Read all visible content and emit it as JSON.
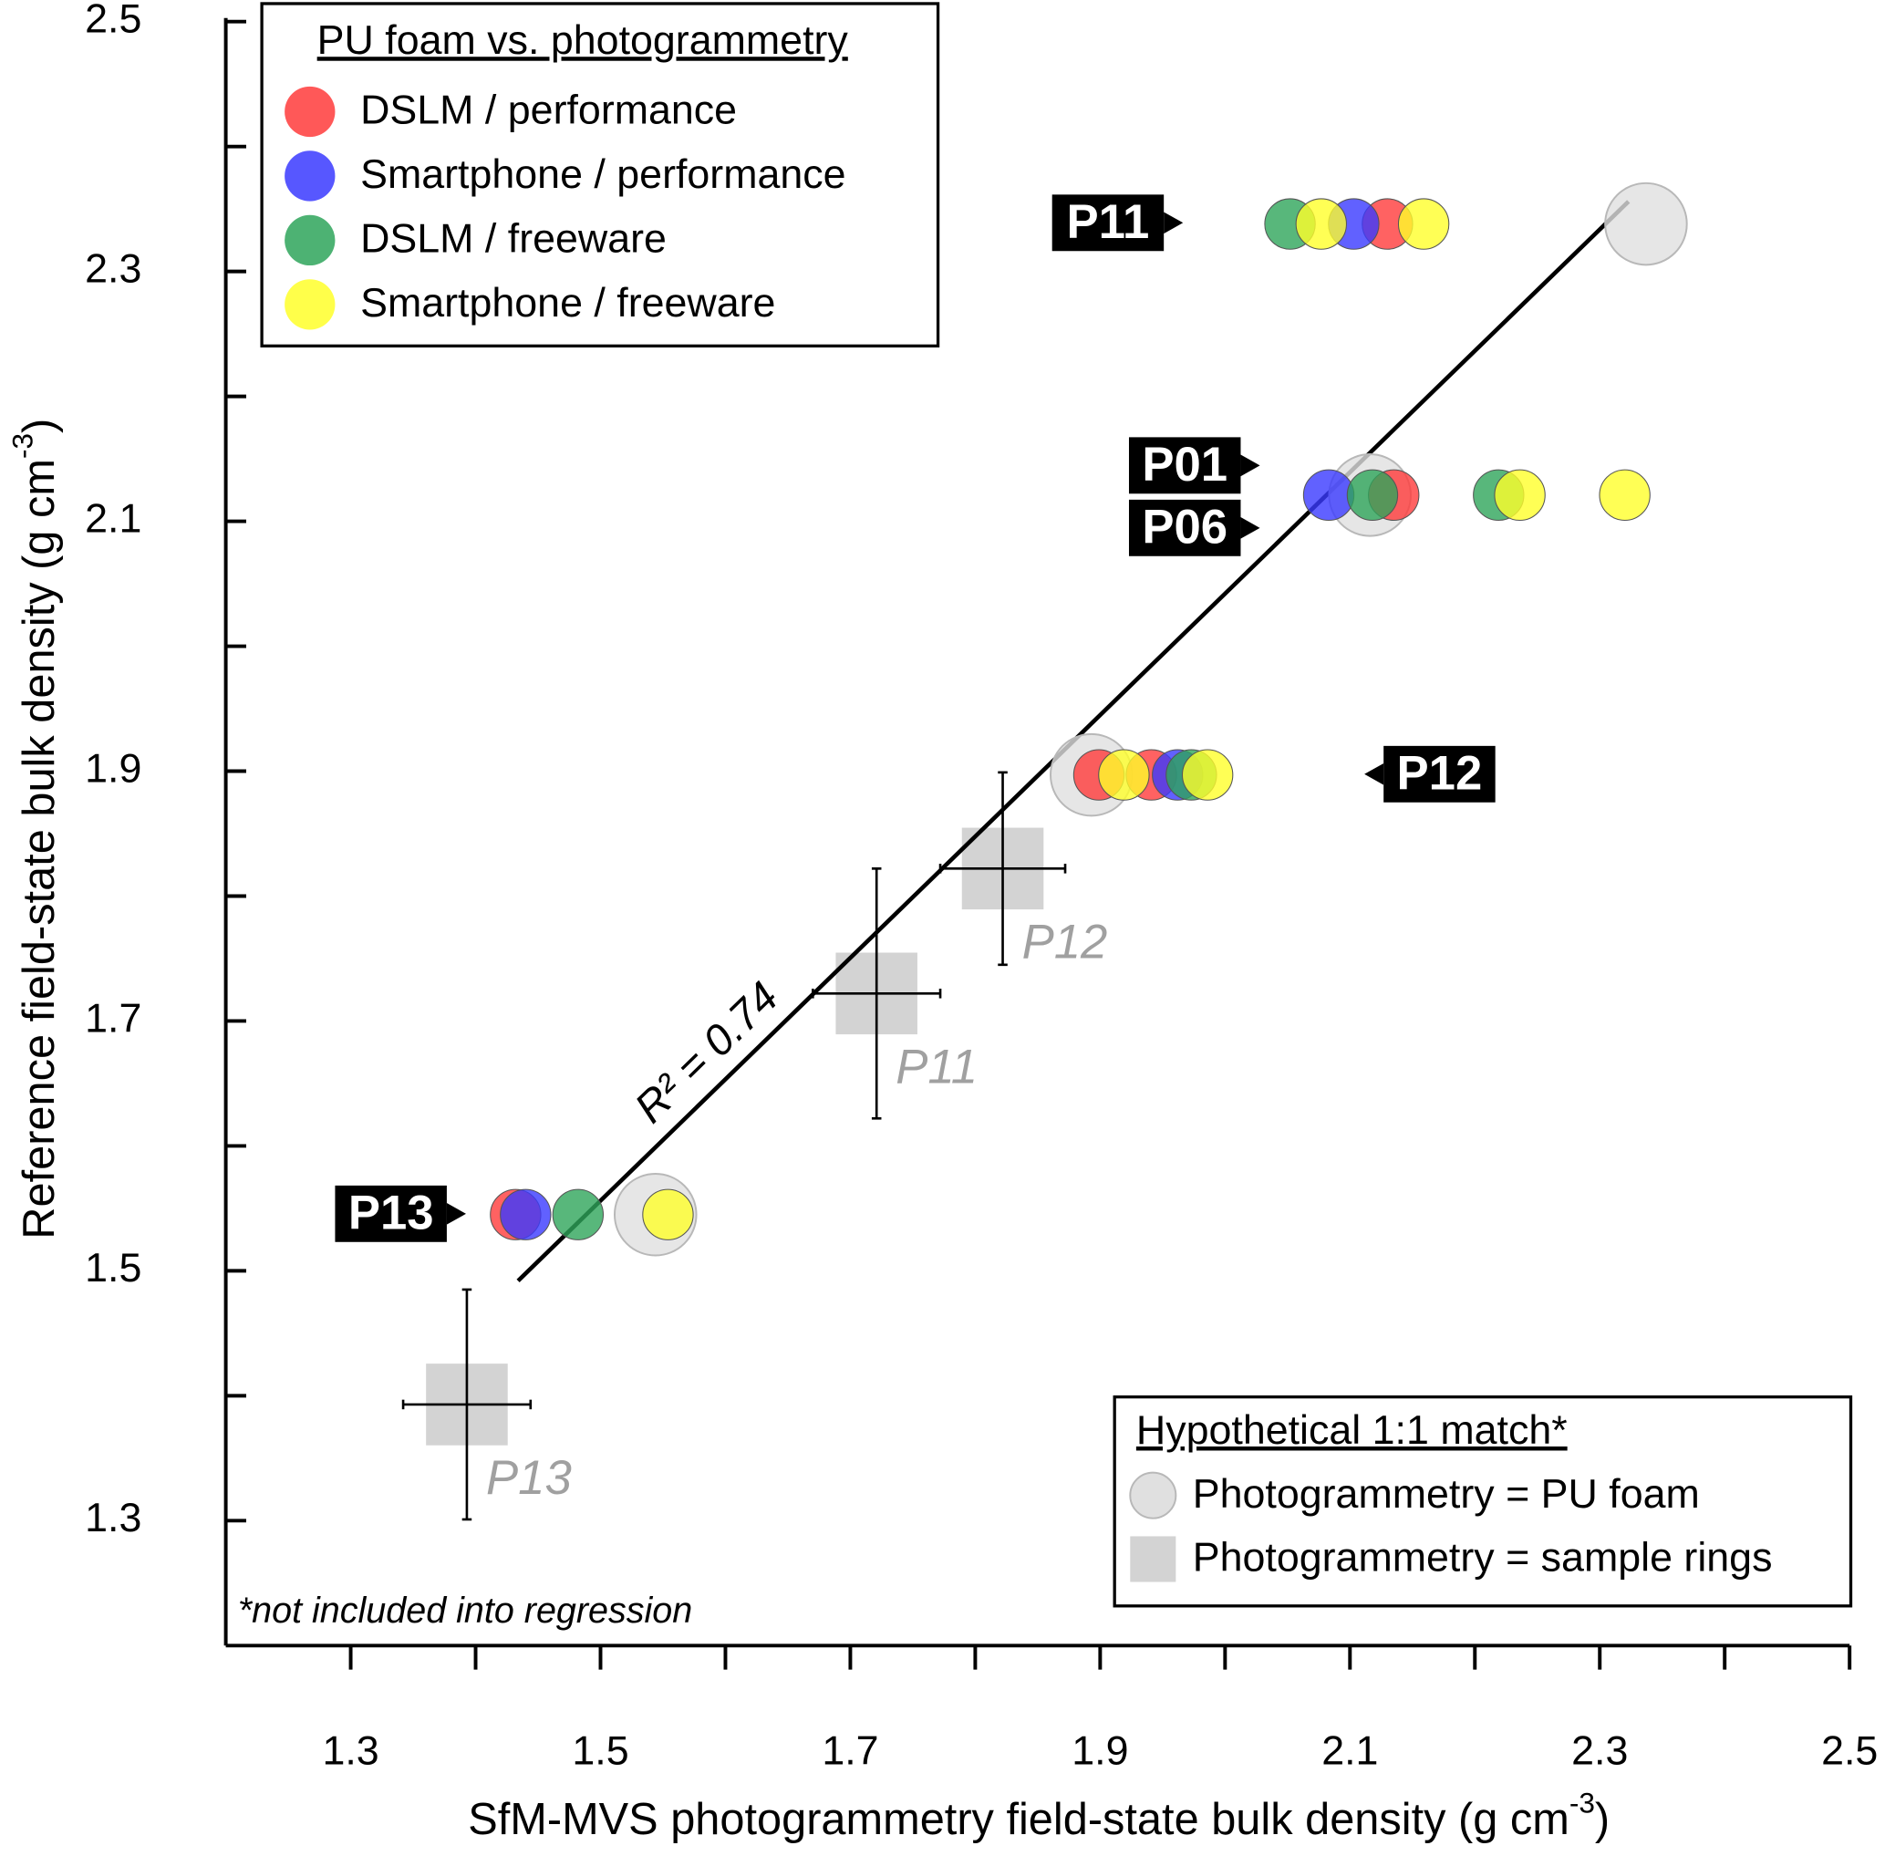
{
  "chart_data": {
    "type": "scatter",
    "x_label": "SfM-MVS photogrammetry field-state bulk density (g cm",
    "x_label_sup": "-3",
    "x_label_end": ")",
    "y_label": "Reference field-state bulk density (g cm",
    "y_label_sup": "-3",
    "y_label_end": ")",
    "xlim": [
      1.2,
      2.5
    ],
    "ylim": [
      1.2,
      2.5
    ],
    "xticks": [
      1.3,
      1.5,
      1.7,
      1.9,
      2.1,
      2.3,
      2.5
    ],
    "yticks": [
      1.3,
      1.5,
      1.7,
      1.9,
      2.1,
      2.3,
      2.5
    ],
    "xminor_ticks": [
      1.4,
      1.6,
      1.8,
      2.0,
      2.2,
      2.4
    ],
    "yminor_ticks": [
      1.4,
      1.6,
      1.8,
      2.0,
      2.2,
      2.4
    ],
    "legend_title": "PU foam vs. photogrammetry",
    "series": [
      {
        "name": "DSLM / performance",
        "color": "#ff3b3b",
        "x": [
          2.13,
          2.135,
          1.899,
          1.941,
          1.432
        ],
        "y": [
          2.338,
          2.121,
          1.897,
          1.897,
          1.545
        ]
      },
      {
        "name": "Smartphone / performance",
        "color": "#3a3aff",
        "x": [
          2.103,
          2.083,
          1.962,
          1.44
        ],
        "y": [
          2.338,
          2.121,
          1.897,
          1.545
        ]
      },
      {
        "name": "DSLM / freeware",
        "color": "#2ea55a",
        "x": [
          2.052,
          2.118,
          2.219,
          1.973,
          1.482
        ],
        "y": [
          2.338,
          2.121,
          2.121,
          1.897,
          1.545
        ]
      },
      {
        "name": "Smartphone / freeware",
        "color": "#ffff2a",
        "x": [
          2.077,
          2.159,
          2.236,
          2.32,
          1.919,
          1.986,
          1.554
        ],
        "y": [
          2.338,
          2.338,
          2.121,
          2.121,
          1.897,
          1.897,
          1.545
        ]
      }
    ],
    "reference_legend_title": "Hypothetical 1:1 match*",
    "pu_foam": {
      "name": "Photogrammetry = PU foam",
      "color": "#e0e0e0",
      "x": [
        2.337,
        2.116,
        1.893,
        1.544
      ],
      "y": [
        2.338,
        2.121,
        1.897,
        1.545
      ]
    },
    "sample_rings": {
      "name": "Photogrammetry = sample rings",
      "color": "#d3d3d3",
      "x": [
        1.822,
        1.721,
        1.393
      ],
      "y": [
        1.822,
        1.722,
        1.393
      ],
      "x_err": [
        0.05,
        0.051,
        0.051
      ],
      "y_err": [
        0.077,
        0.1,
        0.092
      ],
      "labels": [
        "P12",
        "P11",
        "P13"
      ]
    },
    "regression": {
      "x": [
        1.434,
        2.323
      ],
      "y": [
        1.492,
        2.356
      ],
      "label": "R² = 0.74"
    },
    "plot_labels": [
      "P11",
      "P01",
      "P06",
      "P12",
      "P13"
    ],
    "footnote": "*not included into regression"
  }
}
